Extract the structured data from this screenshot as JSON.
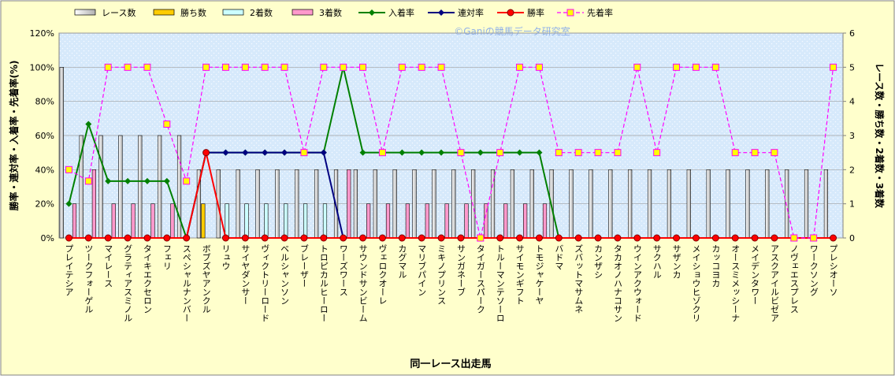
{
  "chart_data": {
    "type": "combo",
    "watermark": "©Ganiの競馬データ研究室",
    "y_label": "勝率・連対率・入着率・先着率(%)",
    "y2_label": "レース数・勝ち数・2着数・3着数",
    "x_label": "同一レース出走馬",
    "categories": [
      "プレイテシア",
      "ツークフォーゲル",
      "マイレース",
      "グラティアスミノル",
      "タイキエクセロン",
      "フェリ",
      "スペシャルナンバー",
      "ボブズヤアンクル",
      "リュウ",
      "サイヤダンサー",
      "ヴィクトリーロード",
      "ベルシャンソン",
      "ブレーザー",
      "トロピカルヒーロー",
      "ワーズワース",
      "サウンドサンビーム",
      "ヴェロクオーレ",
      "カグマル",
      "マリブパイン",
      "ミキノプリンス",
      "サンガネーブ",
      "タイガースパーク",
      "トルーマンテソーロ",
      "サイモンギフト",
      "トモジャケーヤ",
      "バドマ",
      "ズバットマサムネ",
      "カンザシ",
      "タカオノハナコサン",
      "ウインアクウォード",
      "サクハル",
      "サザンカ",
      "メイショウヒゾクリ",
      "カッコヨカ",
      "オースミメッシーナ",
      "メイデンタワー",
      "アスクアイルビゼア",
      "ノヴェエスプレス",
      "ワークソング",
      "プレシオーソ"
    ],
    "ylim": [
      0,
      120
    ],
    "yticks": [
      {
        "value": 0,
        "label": "0%"
      },
      {
        "value": 20,
        "label": "20%"
      },
      {
        "value": 40,
        "label": "40%"
      },
      {
        "value": 60,
        "label": "60%"
      },
      {
        "value": 80,
        "label": "80%"
      },
      {
        "value": 100,
        "label": "100%"
      },
      {
        "value": 120,
        "label": "120%"
      }
    ],
    "y2lim": [
      0,
      6
    ],
    "y2ticks": [
      0,
      1,
      2,
      3,
      4,
      5,
      6
    ],
    "grid": true,
    "series": [
      {
        "name": "レース数",
        "type": "bar",
        "axis": "y2",
        "color": "#ffffff",
        "values": [
          5,
          3,
          3,
          3,
          3,
          3,
          3,
          2,
          2,
          2,
          2,
          2,
          2,
          2,
          2,
          2,
          2,
          2,
          2,
          2,
          2,
          2,
          2,
          2,
          2,
          2,
          2,
          2,
          2,
          2,
          2,
          2,
          2,
          2,
          2,
          2,
          2,
          2,
          2,
          2
        ]
      },
      {
        "name": "勝ち数",
        "type": "bar",
        "axis": "y2",
        "color": "#ffcc00",
        "values": [
          0,
          0,
          0,
          0,
          0,
          0,
          0,
          1,
          0,
          0,
          0,
          0,
          0,
          0,
          0,
          0,
          0,
          0,
          0,
          0,
          0,
          0,
          0,
          0,
          0,
          0,
          0,
          0,
          0,
          0,
          0,
          0,
          0,
          0,
          0,
          0,
          0,
          0,
          0,
          0
        ]
      },
      {
        "name": "2着数",
        "type": "bar",
        "axis": "y2",
        "color": "#ccffff",
        "values": [
          0,
          0,
          0,
          0,
          0,
          0,
          0,
          0,
          1,
          1,
          1,
          1,
          1,
          1,
          0,
          0,
          0,
          0,
          0,
          0,
          0,
          0,
          0,
          0,
          0,
          0,
          0,
          0,
          0,
          0,
          0,
          0,
          0,
          0,
          0,
          0,
          0,
          0,
          0,
          0
        ]
      },
      {
        "name": "3着数",
        "type": "bar",
        "axis": "y2",
        "color": "#ff99cc",
        "values": [
          1,
          2,
          1,
          1,
          1,
          1,
          0,
          0,
          0,
          0,
          0,
          0,
          0,
          0,
          2,
          1,
          1,
          1,
          1,
          1,
          1,
          1,
          1,
          1,
          1,
          0,
          0,
          0,
          0,
          0,
          0,
          0,
          0,
          0,
          0,
          0,
          0,
          0,
          0,
          0
        ]
      },
      {
        "name": "入着率",
        "type": "line",
        "color": "#008000",
        "marker": "diamond",
        "values": [
          20,
          66.7,
          33.3,
          33.3,
          33.3,
          33.3,
          0,
          50,
          50,
          50,
          50,
          50,
          50,
          50,
          100,
          50,
          50,
          50,
          50,
          50,
          50,
          50,
          50,
          50,
          50,
          0,
          0,
          0,
          0,
          0,
          0,
          0,
          0,
          0,
          0,
          0,
          0,
          0,
          0,
          0
        ]
      },
      {
        "name": "連対率",
        "type": "line",
        "color": "#000080",
        "marker": "diamond",
        "values": [
          0,
          0,
          0,
          0,
          0,
          0,
          0,
          50,
          50,
          50,
          50,
          50,
          50,
          50,
          0,
          0,
          0,
          0,
          0,
          0,
          0,
          0,
          0,
          0,
          0,
          0,
          0,
          0,
          0,
          0,
          0,
          0,
          0,
          0,
          0,
          0,
          0,
          0,
          0,
          0
        ]
      },
      {
        "name": "勝率",
        "type": "line",
        "color": "#ff0000",
        "marker": "circle",
        "values": [
          0,
          0,
          0,
          0,
          0,
          0,
          0,
          50,
          0,
          0,
          0,
          0,
          0,
          0,
          0,
          0,
          0,
          0,
          0,
          0,
          0,
          0,
          0,
          0,
          0,
          0,
          0,
          0,
          0,
          0,
          0,
          0,
          0,
          0,
          0,
          0,
          0,
          0,
          0,
          0
        ]
      },
      {
        "name": "先着率",
        "type": "line",
        "color": "#ff00ff",
        "marker": "square",
        "dashed": true,
        "values": [
          40,
          33.3,
          100,
          100,
          100,
          66.7,
          33.3,
          100,
          100,
          100,
          100,
          100,
          50,
          100,
          100,
          100,
          50,
          100,
          100,
          100,
          50,
          0,
          50,
          100,
          100,
          50,
          50,
          50,
          50,
          100,
          50,
          100,
          100,
          100,
          50,
          50,
          50,
          0,
          0,
          100
        ]
      }
    ]
  }
}
